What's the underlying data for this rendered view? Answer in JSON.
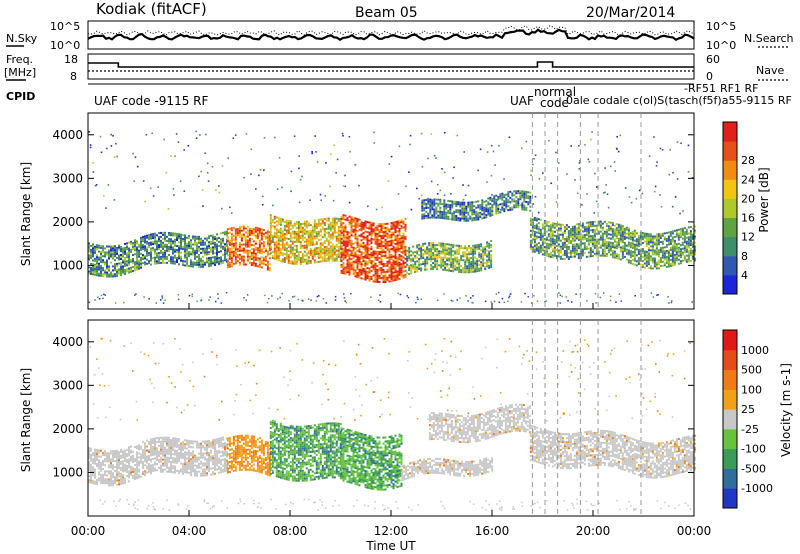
{
  "header": {
    "station": "Kodiak (fitACF)",
    "beam": "Beam 05",
    "date": "20/Mar/2014"
  },
  "top_panels": {
    "nsky_label": "N.Sky",
    "nsearch_label": "N.Search",
    "nsky_ticks": [
      "10^5",
      "10^0"
    ],
    "nsearch_ticks": [
      "10^5",
      "10^0"
    ],
    "freq_label_line1": "Freq.",
    "freq_label_line2": "[MHz]",
    "freq_ticks": [
      "18",
      "8"
    ],
    "nave_label": "Nave",
    "nave_ticks": [
      "60",
      "0"
    ],
    "cpid_label": "CPID",
    "cpid_main": "UAF code -9115 RF",
    "cpid_cluster_1": "UAF",
    "cpid_cluster_2": "normal",
    "cpid_cluster_3": "code",
    "cpid_cluster_4": "0ale codale c(ol)S(tasch(f5f)a55-9115 RF",
    "cpid_cluster_5": "RF1 RF",
    "cpid_cluster_6": "-RF51"
  },
  "colors": {
    "frame": "#000000",
    "scatter_gray": "#c0c0c0"
  },
  "chart_data": [
    {
      "type": "heatmap",
      "panel": "power",
      "ylabel": "Slant Range [km]",
      "ylim": [
        0,
        4500
      ],
      "yticks": [
        1000,
        2000,
        3000,
        4000
      ],
      "xlim": [
        "00:00",
        "24:00"
      ],
      "colorbar": {
        "label": "Power [dB]",
        "ticks": [
          4,
          8,
          12,
          16,
          20,
          24,
          28
        ],
        "colors": [
          "#1c26d8",
          "#2f58b5",
          "#3d8f6a",
          "#5fa343",
          "#b0c92a",
          "#f2c414",
          "#f28c10",
          "#e8501a",
          "#e0201a"
        ]
      },
      "bands": [
        {
          "start": 0.0,
          "end": 5.5,
          "lo": 950,
          "hi": 1650,
          "level": 0.3
        },
        {
          "start": 5.5,
          "end": 7.2,
          "lo": 800,
          "hi": 1700,
          "level": 0.75
        },
        {
          "start": 7.2,
          "end": 10.0,
          "lo": 1100,
          "hi": 2100,
          "level": 0.6
        },
        {
          "start": 10.0,
          "end": 12.6,
          "lo": 850,
          "hi": 2200,
          "level": 0.85
        },
        {
          "start": 12.6,
          "end": 16.0,
          "lo": 900,
          "hi": 1500,
          "level": 0.4
        },
        {
          "start": 13.2,
          "end": 17.5,
          "lo": 2050,
          "hi": 2500,
          "level": 0.25
        },
        {
          "start": 17.5,
          "end": 24.0,
          "lo": 1150,
          "hi": 1950,
          "level": 0.35
        }
      ]
    },
    {
      "type": "heatmap",
      "panel": "velocity",
      "ylabel": "Slant Range [km]",
      "xlabel": "Time UT",
      "ylim": [
        0,
        4500
      ],
      "yticks": [
        1000,
        2000,
        3000,
        4000
      ],
      "xticks": [
        "00:00",
        "04:00",
        "08:00",
        "12:00",
        "16:00",
        "20:00",
        "00:00"
      ],
      "colorbar": {
        "label": "Velocity [m s-1]",
        "ticks": [
          1000,
          500,
          100,
          25,
          -25,
          -100,
          -500,
          -1000
        ],
        "colors": [
          "#2236c4",
          "#2f6e9a",
          "#3a9c58",
          "#66c43c",
          "#c8c8c8",
          "#f2a018",
          "#f07a16",
          "#e84a18",
          "#e01818"
        ]
      },
      "bands": [
        {
          "start": 0.0,
          "end": 5.5,
          "lo": 900,
          "hi": 1700,
          "vel": "gray"
        },
        {
          "start": 5.5,
          "end": 7.2,
          "lo": 850,
          "hi": 1650,
          "vel": "orange"
        },
        {
          "start": 7.2,
          "end": 10.0,
          "lo": 900,
          "hi": 2150,
          "vel": "green"
        },
        {
          "start": 10.0,
          "end": 12.4,
          "lo": 850,
          "hi": 2050,
          "vel": "green"
        },
        {
          "start": 12.4,
          "end": 16.0,
          "lo": 950,
          "hi": 1300,
          "vel": "gray"
        },
        {
          "start": 13.5,
          "end": 17.5,
          "lo": 1750,
          "hi": 2350,
          "vel": "gray"
        },
        {
          "start": 17.5,
          "end": 24.0,
          "lo": 1100,
          "hi": 1900,
          "vel": "gray"
        }
      ]
    }
  ]
}
